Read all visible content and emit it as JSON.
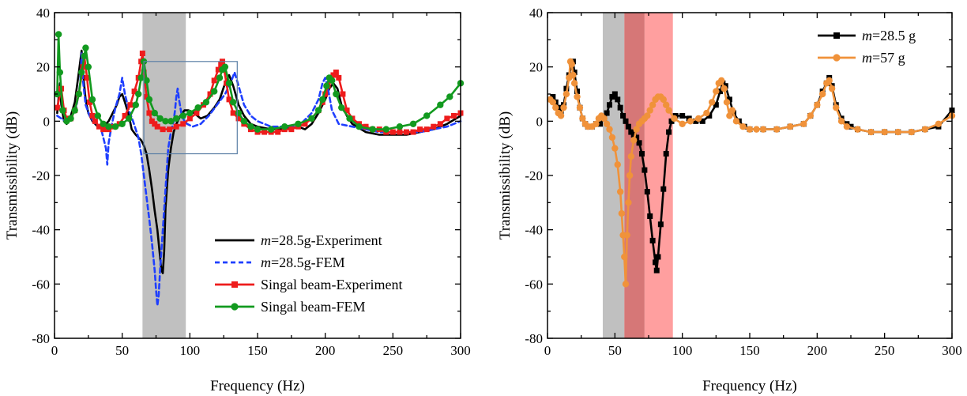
{
  "chart_data": [
    {
      "type": "line",
      "id": "left",
      "xlabel": "Frequency (Hz)",
      "ylabel": "Transmissibility (dB)",
      "xlim": [
        0,
        300
      ],
      "ylim": [
        -80,
        40
      ],
      "xticks": [
        0,
        50,
        100,
        150,
        200,
        250,
        300
      ],
      "yticks": [
        -80,
        -60,
        -40,
        -20,
        0,
        20,
        40
      ],
      "grid": false,
      "legend_position": "bottom-right",
      "shaded_bands": [
        {
          "x0": 65,
          "x1": 97,
          "color": "#bdbdbd",
          "opacity": 0.95
        }
      ],
      "zoom_boxes": [
        {
          "x0": 66,
          "x1": 135,
          "y0": -12,
          "y1": 22,
          "color": "#5b7fa6"
        }
      ],
      "series": [
        {
          "name_italic": "m",
          "name_rest": "=28.5g-Experiment",
          "color": "#000000",
          "dash": "",
          "marker": "none",
          "x": [
            2,
            4,
            5,
            7,
            9,
            12,
            15,
            18,
            20,
            21,
            23,
            25,
            28,
            32,
            36,
            40,
            43,
            46,
            48,
            50,
            52,
            55,
            57,
            60,
            62,
            64,
            66,
            68,
            70,
            72,
            74,
            76,
            78,
            79,
            80,
            81,
            82,
            84,
            86,
            88,
            90,
            93,
            96,
            99,
            103,
            108,
            113,
            118,
            122,
            126,
            129,
            132,
            136,
            140,
            145,
            150,
            160,
            170,
            180,
            185,
            190,
            195,
            200,
            203,
            206,
            209,
            212,
            216,
            220,
            230,
            240,
            250,
            260,
            270,
            280,
            290,
            300
          ],
          "y": [
            3,
            14,
            6,
            0,
            -1,
            2,
            7,
            18,
            26,
            18,
            8,
            3,
            0,
            -2,
            -2,
            0,
            3,
            6,
            9,
            10,
            7,
            2,
            -3,
            -5,
            -6,
            -7,
            -9,
            -12,
            -18,
            -25,
            -33,
            -40,
            -50,
            -55,
            -56,
            -48,
            -32,
            -18,
            -10,
            -4,
            -1,
            2,
            4,
            4,
            3,
            1,
            2,
            5,
            8,
            14,
            17,
            13,
            6,
            2,
            -1,
            -2,
            -3,
            -3,
            -2,
            -3,
            -1,
            3,
            8,
            12,
            14,
            12,
            6,
            2,
            -1,
            -4,
            -5,
            -5,
            -5,
            -4,
            -3,
            -1,
            2
          ]
        },
        {
          "name_italic": "m",
          "name_rest": "=28.5g-FEM",
          "color": "#1f3fff",
          "dash": "6,4",
          "marker": "none",
          "x": [
            2,
            5,
            8,
            12,
            16,
            19,
            20,
            21,
            23,
            26,
            30,
            34,
            36,
            38,
            39,
            40,
            42,
            45,
            48,
            50,
            52,
            55,
            58,
            60,
            62,
            64,
            66,
            68,
            70,
            72,
            74,
            75,
            76,
            77,
            78,
            80,
            82,
            84,
            86,
            88,
            89,
            90,
            91,
            92,
            94,
            96,
            98,
            102,
            108,
            114,
            120,
            126,
            130,
            133,
            136,
            140,
            145,
            150,
            160,
            170,
            180,
            190,
            195,
            198,
            200,
            202,
            205,
            210,
            220,
            230,
            240,
            250,
            260,
            270,
            280,
            290,
            300
          ],
          "y": [
            2,
            1,
            0,
            1,
            5,
            14,
            25,
            15,
            6,
            2,
            -1,
            -2,
            -6,
            -10,
            -16,
            -8,
            -2,
            5,
            10,
            16,
            10,
            4,
            0,
            -3,
            -6,
            -12,
            -20,
            -28,
            -36,
            -45,
            -55,
            -62,
            -68,
            -64,
            -55,
            -40,
            -25,
            -10,
            -4,
            0,
            4,
            9,
            12,
            8,
            2,
            0,
            -1,
            -2,
            -1,
            2,
            6,
            10,
            14,
            18,
            13,
            6,
            2,
            0,
            -2,
            -2,
            -2,
            3,
            8,
            14,
            16,
            12,
            4,
            -1,
            -2,
            -3,
            -4,
            -4,
            -4,
            -4,
            -3,
            -2,
            0
          ]
        },
        {
          "name": "Singal beam-Experiment",
          "color": "#ee1c1c",
          "dash": "",
          "marker": "square",
          "x": [
            2,
            5,
            7,
            9,
            12,
            15,
            18,
            21,
            22,
            24,
            26,
            28,
            30,
            33,
            36,
            40,
            44,
            48,
            52,
            56,
            59,
            62,
            64,
            65,
            66,
            68,
            70,
            72,
            74,
            76,
            80,
            85,
            90,
            95,
            100,
            105,
            110,
            115,
            118,
            121,
            123,
            124,
            125,
            127,
            129,
            132,
            136,
            140,
            145,
            150,
            155,
            160,
            165,
            170,
            175,
            180,
            185,
            190,
            195,
            198,
            200,
            202,
            204,
            206,
            208,
            210,
            213,
            216,
            220,
            225,
            230,
            235,
            240,
            245,
            250,
            255,
            260,
            265,
            270,
            275,
            280,
            285,
            290,
            295,
            300
          ],
          "y": [
            5,
            12,
            4,
            1,
            1,
            4,
            10,
            20,
            24,
            16,
            7,
            2,
            0,
            -2,
            -3,
            -3,
            -2,
            -1,
            2,
            6,
            11,
            16,
            22,
            25,
            18,
            9,
            3,
            0,
            -1,
            -2,
            -3,
            -3,
            -2,
            -1,
            1,
            3,
            6,
            10,
            15,
            19,
            21,
            22,
            20,
            14,
            8,
            3,
            1,
            -1,
            -3,
            -4,
            -4,
            -4,
            -4,
            -3,
            -3,
            -2,
            -1,
            1,
            4,
            7,
            10,
            13,
            15,
            17,
            18,
            16,
            10,
            4,
            1,
            -1,
            -2,
            -3,
            -3,
            -4,
            -4,
            -4,
            -4,
            -4,
            -3,
            -3,
            -2,
            -1,
            1,
            2,
            3
          ]
        },
        {
          "name": "Singal beam-FEM",
          "color": "#129a1f",
          "dash": "",
          "marker": "circle",
          "x": [
            2,
            3,
            4,
            6,
            9,
            12,
            15,
            18,
            20,
            22,
            23,
            25,
            28,
            32,
            36,
            40,
            45,
            50,
            55,
            60,
            62,
            64,
            66,
            68,
            70,
            74,
            78,
            82,
            86,
            90,
            95,
            100,
            106,
            112,
            118,
            122,
            124,
            126,
            129,
            132,
            136,
            140,
            145,
            150,
            160,
            170,
            180,
            190,
            195,
            198,
            201,
            203,
            205,
            208,
            212,
            218,
            225,
            235,
            245,
            255,
            265,
            275,
            285,
            292,
            300
          ],
          "y": [
            10,
            32,
            18,
            4,
            0,
            1,
            4,
            10,
            18,
            24,
            27,
            20,
            8,
            2,
            -1,
            -2,
            -2,
            -1,
            1,
            6,
            10,
            16,
            22,
            15,
            8,
            3,
            1,
            0,
            0,
            1,
            2,
            3,
            5,
            7,
            11,
            16,
            19,
            20,
            14,
            7,
            3,
            0,
            -2,
            -3,
            -3,
            -2,
            -1,
            1,
            4,
            8,
            13,
            16,
            15,
            10,
            5,
            1,
            -2,
            -3,
            -3,
            -2,
            -1,
            2,
            6,
            9,
            14
          ]
        }
      ]
    },
    {
      "type": "line",
      "id": "right",
      "xlabel": "Frequency (Hz)",
      "ylabel": "Transmissibility (dB)",
      "xlim": [
        0,
        300
      ],
      "ylim": [
        -80,
        40
      ],
      "xticks": [
        0,
        50,
        100,
        150,
        200,
        250,
        300
      ],
      "yticks": [
        -80,
        -60,
        -40,
        -20,
        0,
        20,
        40
      ],
      "grid": false,
      "legend_position": "top-right",
      "shaded_bands": [
        {
          "x0": 41,
          "x1": 57,
          "color": "#bdbdbd",
          "opacity": 0.95
        },
        {
          "x0": 57,
          "x1": 72,
          "color": "#d47070",
          "opacity": 0.95
        },
        {
          "x0": 72,
          "x1": 93,
          "color": "#ff9a9a",
          "opacity": 0.95
        }
      ],
      "zoom_boxes": [],
      "series": [
        {
          "name_italic": "m",
          "name_rest": "=28.5 g",
          "color": "#000000",
          "dash": "",
          "marker": "square",
          "x": [
            4,
            6,
            8,
            10,
            12,
            14,
            16,
            18,
            19,
            20,
            22,
            24,
            26,
            28,
            30,
            33,
            36,
            39,
            42,
            44,
            46,
            48,
            50,
            52,
            54,
            56,
            58,
            60,
            62,
            64,
            66,
            68,
            70,
            72,
            74,
            76,
            78,
            80,
            81,
            82,
            84,
            86,
            88,
            90,
            92,
            95,
            100,
            105,
            110,
            115,
            120,
            125,
            128,
            130,
            132,
            135,
            138,
            142,
            146,
            150,
            160,
            170,
            180,
            190,
            195,
            200,
            204,
            207,
            209,
            211,
            214,
            218,
            222,
            225,
            230,
            240,
            250,
            260,
            270,
            280,
            290,
            300
          ],
          "y": [
            9,
            7,
            5,
            3,
            6,
            12,
            17,
            21,
            22,
            18,
            11,
            5,
            1,
            -1,
            -2,
            -2,
            -1,
            -1,
            1,
            3,
            6,
            9,
            10,
            8,
            5,
            2,
            0,
            -2,
            -4,
            -5,
            -6,
            -8,
            -12,
            -18,
            -26,
            -35,
            -44,
            -52,
            -55,
            -50,
            -38,
            -25,
            -12,
            -4,
            0,
            2,
            2,
            1,
            0,
            0,
            2,
            6,
            11,
            14,
            13,
            8,
            3,
            0,
            -2,
            -3,
            -3,
            -3,
            -2,
            -1,
            2,
            6,
            11,
            14,
            16,
            13,
            6,
            1,
            -1,
            -2,
            -3,
            -4,
            -4,
            -4,
            -4,
            -3,
            -2,
            4
          ]
        },
        {
          "name_italic": "m",
          "name_rest": "=57 g",
          "color": "#f0923a",
          "dash": "",
          "marker": "circle",
          "x": [
            2,
            4,
            6,
            8,
            10,
            12,
            14,
            16,
            17,
            18,
            19,
            20,
            22,
            24,
            26,
            28,
            30,
            33,
            36,
            38,
            40,
            42,
            44,
            46,
            48,
            50,
            52,
            54,
            55,
            56,
            57,
            58,
            59,
            60,
            61,
            62,
            64,
            66,
            68,
            70,
            72,
            74,
            76,
            78,
            80,
            82,
            84,
            86,
            88,
            90,
            94,
            100,
            106,
            112,
            118,
            122,
            125,
            127,
            129,
            131,
            133,
            135,
            137,
            140,
            145,
            150,
            155,
            160,
            170,
            180,
            190,
            195,
            200,
            204,
            207,
            209,
            211,
            214,
            218,
            222,
            230,
            240,
            250,
            260,
            270,
            280,
            290,
            300
          ],
          "y": [
            8,
            7,
            5,
            3,
            2,
            5,
            10,
            16,
            22,
            21,
            17,
            14,
            9,
            5,
            1,
            -1,
            -2,
            -2,
            -1,
            1,
            2,
            1,
            -1,
            -3,
            -6,
            -10,
            -16,
            -26,
            -34,
            -42,
            -50,
            -60,
            -42,
            -30,
            -20,
            -13,
            -7,
            -3,
            -1,
            0,
            1,
            2,
            4,
            6,
            8,
            9,
            9,
            8,
            6,
            4,
            1,
            -1,
            0,
            1,
            3,
            7,
            11,
            14,
            15,
            12,
            7,
            2,
            4,
            0,
            -2,
            -3,
            -3,
            -3,
            -3,
            -2,
            -1,
            2,
            6,
            10,
            14,
            15,
            12,
            5,
            0,
            -2,
            -3,
            -4,
            -4,
            -4,
            -4,
            -3,
            -1,
            2
          ]
        }
      ]
    }
  ]
}
